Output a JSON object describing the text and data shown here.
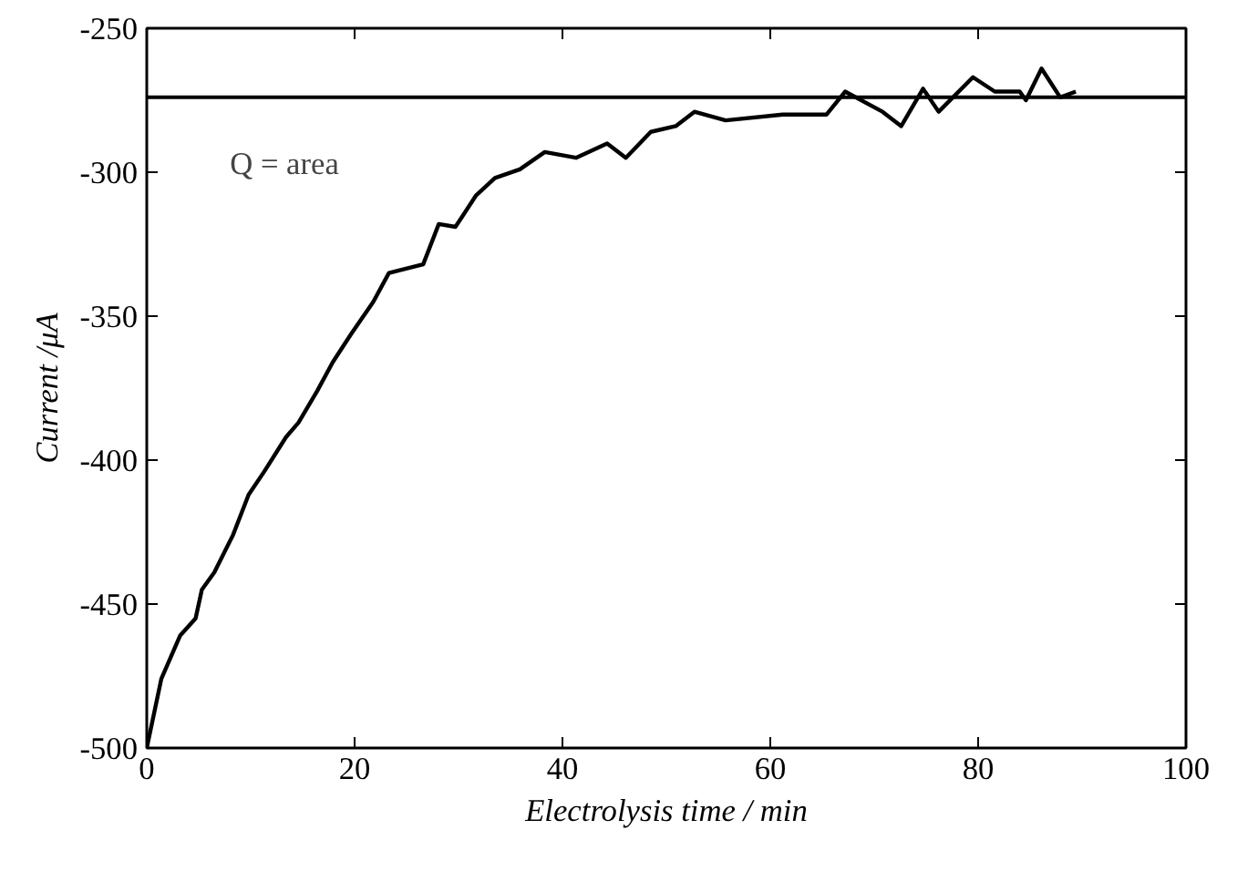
{
  "chart_data": {
    "type": "line",
    "xlabel": "Electrolysis time / min",
    "ylabel": "Current /μA",
    "xlim": [
      0,
      100
    ],
    "ylim": [
      -500,
      -250
    ],
    "xticks": [
      0,
      20,
      40,
      60,
      80,
      100
    ],
    "yticks": [
      -500,
      -450,
      -400,
      -350,
      -300,
      -250
    ],
    "grid": false,
    "marker": "none",
    "line_style": "solid",
    "annotations": [
      "Q = area"
    ],
    "ref_lines": [
      {
        "axis": "y",
        "value": -274,
        "color": "#000000"
      }
    ],
    "series": [
      {
        "color": "#000000",
        "x": [
          0,
          1.4,
          3.2,
          4.7,
          5.3,
          6.5,
          8.3,
          9.8,
          11.3,
          13.4,
          14.6,
          16.4,
          17.9,
          19.7,
          21.8,
          23.3,
          26.6,
          28.1,
          29.7,
          31.7,
          33.5,
          35.9,
          38.3,
          41.3,
          44.3,
          46.1,
          48.5,
          50.9,
          52.7,
          55.7,
          61.2,
          65.4,
          67.2,
          70.8,
          72.6,
          74.7,
          76.2,
          79.5,
          81.6,
          84,
          84.6,
          86.1,
          87.9,
          89.4
        ],
        "values": [
          -500,
          -476,
          -461,
          -455,
          -445,
          -439,
          -426,
          -412,
          -404,
          -392,
          -387,
          -376,
          -366,
          -356,
          -345,
          -335,
          -332,
          -318,
          -319,
          -308,
          -302,
          -299,
          -293,
          -295,
          -290,
          -295,
          -286,
          -284,
          -279,
          -282,
          -280,
          -280,
          -272,
          -279,
          -284,
          -271,
          -279,
          -267,
          -272,
          -272,
          -275,
          -264,
          -274,
          -272
        ]
      }
    ]
  }
}
